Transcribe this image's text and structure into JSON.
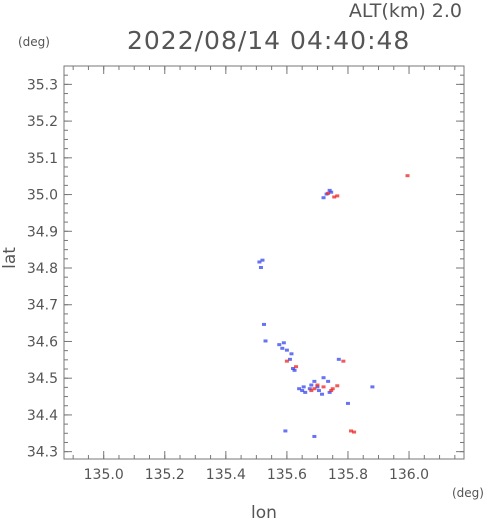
{
  "chart_data": {
    "type": "scatter",
    "title": "2022/08/14 04:40:48",
    "altitude_label": "ALT(km) 2.0",
    "xlabel": "lon",
    "ylabel": "lat",
    "x_unit": "(deg)",
    "y_unit": "(deg)",
    "xlim": [
      134.87,
      136.18
    ],
    "ylim": [
      34.28,
      35.35
    ],
    "x_ticks": [
      135.0,
      135.2,
      135.4,
      135.6,
      135.8,
      136.0
    ],
    "x_tick_labels": [
      "135.0",
      "135.2",
      "135.4",
      "135.6",
      "135.8",
      "136.0"
    ],
    "y_ticks": [
      34.3,
      34.4,
      34.5,
      34.6,
      34.7,
      34.8,
      34.9,
      35.0,
      35.1,
      35.2,
      35.3
    ],
    "y_tick_labels": [
      "34.3",
      "34.4",
      "34.5",
      "34.6",
      "34.7",
      "34.8",
      "34.9",
      "35.0",
      "35.1",
      "35.2",
      "35.3"
    ],
    "colors": {
      "blue": "#3344ee",
      "red": "#ee2222",
      "axis": "#777777",
      "text": "#555555"
    },
    "series": [
      {
        "color_key": "blue",
        "points": [
          [
            135.73,
            35.0
          ],
          [
            135.72,
            34.99
          ],
          [
            135.74,
            35.01
          ],
          [
            135.745,
            35.005
          ],
          [
            135.51,
            34.815
          ],
          [
            135.52,
            34.82
          ],
          [
            135.515,
            34.8
          ],
          [
            135.525,
            34.645
          ],
          [
            135.53,
            34.6
          ],
          [
            135.575,
            34.59
          ],
          [
            135.585,
            34.58
          ],
          [
            135.59,
            34.595
          ],
          [
            135.6,
            34.575
          ],
          [
            135.61,
            34.55
          ],
          [
            135.615,
            34.565
          ],
          [
            135.62,
            34.525
          ],
          [
            135.625,
            34.52
          ],
          [
            135.64,
            34.47
          ],
          [
            135.65,
            34.465
          ],
          [
            135.655,
            34.475
          ],
          [
            135.66,
            34.46
          ],
          [
            135.675,
            34.47
          ],
          [
            135.68,
            34.48
          ],
          [
            135.69,
            34.49
          ],
          [
            135.7,
            34.475
          ],
          [
            135.72,
            34.5
          ],
          [
            135.735,
            34.49
          ],
          [
            135.705,
            34.465
          ],
          [
            135.715,
            34.455
          ],
          [
            135.74,
            34.46
          ],
          [
            135.77,
            34.55
          ],
          [
            135.88,
            34.475
          ],
          [
            135.595,
            34.355
          ],
          [
            135.69,
            34.34
          ],
          [
            135.8,
            34.43
          ]
        ]
      },
      {
        "color_key": "red",
        "points": [
          [
            135.765,
            34.995
          ],
          [
            135.735,
            35.002
          ],
          [
            135.755,
            34.992
          ],
          [
            135.69,
            34.47
          ],
          [
            135.72,
            34.475
          ],
          [
            135.745,
            34.465
          ],
          [
            135.75,
            34.47
          ],
          [
            135.765,
            34.478
          ],
          [
            135.7,
            34.48
          ],
          [
            135.68,
            34.465
          ],
          [
            135.785,
            34.545
          ],
          [
            135.6,
            34.545
          ],
          [
            135.63,
            34.53
          ],
          [
            135.81,
            34.355
          ],
          [
            135.82,
            34.352
          ],
          [
            135.995,
            35.05
          ]
        ]
      }
    ]
  }
}
